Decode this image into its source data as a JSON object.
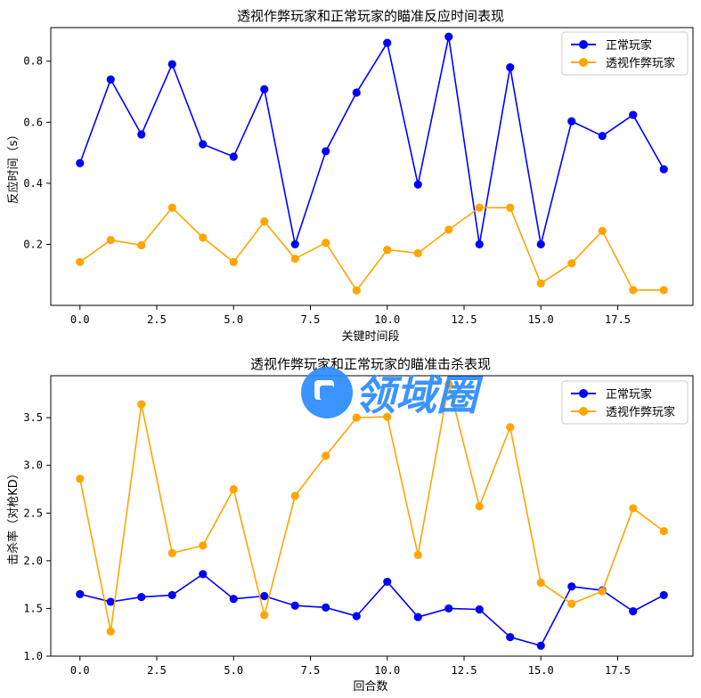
{
  "chart_data": [
    {
      "type": "line",
      "title": "透视作弊玩家和正常玩家的瞄准反应时间表现",
      "xlabel": "关键时间段",
      "ylabel": "反应时间（s）",
      "xlim": [
        -0.95,
        19.95
      ],
      "ylim": [
        0.0,
        0.91
      ],
      "xticks": [
        0.0,
        2.5,
        5.0,
        7.5,
        10.0,
        12.5,
        15.0,
        17.5
      ],
      "xtick_labels": [
        "0.0",
        "2.5",
        "5.0",
        "7.5",
        "10.0",
        "12.5",
        "15.0",
        "17.5"
      ],
      "yticks": [
        0.2,
        0.4,
        0.6,
        0.8
      ],
      "ytick_labels": [
        "0.2",
        "0.4",
        "0.6",
        "0.8"
      ],
      "legend_position": "top-right",
      "x": [
        0,
        1,
        2,
        3,
        4,
        5,
        6,
        7,
        8,
        9,
        10,
        11,
        12,
        13,
        14,
        15,
        16,
        17,
        18,
        19
      ],
      "series": [
        {
          "name": "正常玩家",
          "color": "#0000ff",
          "values": [
            0.466,
            0.74,
            0.56,
            0.79,
            0.528,
            0.487,
            0.708,
            0.2,
            0.505,
            0.697,
            0.86,
            0.396,
            0.88,
            0.2,
            0.78,
            0.2,
            0.603,
            0.555,
            0.624,
            0.446
          ]
        },
        {
          "name": "透视作弊玩家",
          "color": "#ffa500",
          "values": [
            0.142,
            0.214,
            0.197,
            0.32,
            0.222,
            0.142,
            0.275,
            0.153,
            0.205,
            0.049,
            0.182,
            0.171,
            0.248,
            0.32,
            0.32,
            0.072,
            0.138,
            0.244,
            0.05,
            0.05
          ]
        }
      ]
    },
    {
      "type": "line",
      "title": "透视作弊玩家和正常玩家的瞄准击杀表现",
      "xlabel": "回合数",
      "ylabel": "击杀率（对枪KD）",
      "xlim": [
        -0.95,
        19.95
      ],
      "ylim": [
        1.0,
        3.94
      ],
      "xticks": [
        0.0,
        2.5,
        5.0,
        7.5,
        10.0,
        12.5,
        15.0,
        17.5
      ],
      "xtick_labels": [
        "0.0",
        "2.5",
        "5.0",
        "7.5",
        "10.0",
        "12.5",
        "15.0",
        "17.5"
      ],
      "yticks": [
        1.0,
        1.5,
        2.0,
        2.5,
        3.0,
        3.5
      ],
      "ytick_labels": [
        "1.0",
        "1.5",
        "2.0",
        "2.5",
        "3.0",
        "3.5"
      ],
      "legend_position": "top-right",
      "x": [
        0,
        1,
        2,
        3,
        4,
        5,
        6,
        7,
        8,
        9,
        10,
        11,
        12,
        13,
        14,
        15,
        16,
        17,
        18,
        19
      ],
      "series": [
        {
          "name": "正常玩家",
          "color": "#0000ff",
          "values": [
            1.65,
            1.57,
            1.62,
            1.64,
            1.86,
            1.6,
            1.63,
            1.53,
            1.51,
            1.42,
            1.78,
            1.41,
            1.5,
            1.49,
            1.2,
            1.11,
            1.73,
            1.69,
            1.47,
            1.64
          ]
        },
        {
          "name": "透视作弊玩家",
          "color": "#ffa500",
          "values": [
            2.86,
            1.26,
            3.64,
            2.08,
            2.16,
            2.75,
            1.43,
            2.68,
            3.1,
            3.5,
            3.51,
            2.06,
            3.85,
            2.57,
            3.4,
            1.77,
            1.55,
            1.68,
            2.55,
            2.31
          ]
        }
      ]
    }
  ],
  "watermark": {
    "text": "领域圈",
    "color": "#2b8cff"
  }
}
